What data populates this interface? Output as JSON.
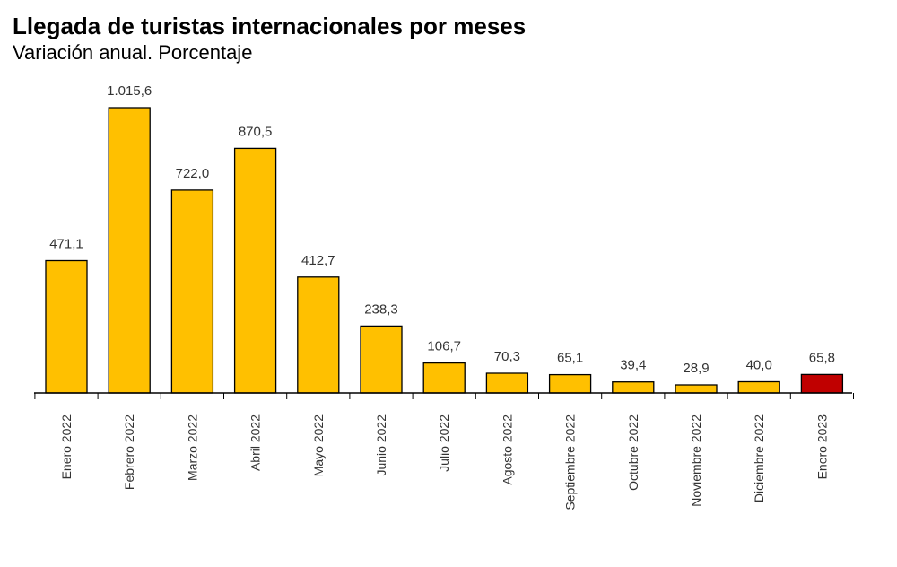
{
  "title": "Llegada de turistas internacionales por meses",
  "subtitle": "Variación anual. Porcentaje",
  "chart_data": {
    "type": "bar",
    "categories": [
      "Enero 2022",
      "Febrero 2022",
      "Marzo 2022",
      "Abril 2022",
      "Mayo 2022",
      "Junio 2022",
      "Julio 2022",
      "Agosto 2022",
      "Septiembre 2022",
      "Octubre 2022",
      "Noviembre 2022",
      "Diciembre 2022",
      "Enero 2023"
    ],
    "values": [
      471.1,
      1015.6,
      722.0,
      870.5,
      412.7,
      238.3,
      106.7,
      70.3,
      65.1,
      39.4,
      28.9,
      40.0,
      65.8
    ],
    "labels": [
      "471,1",
      "1.015,6",
      "722,0",
      "870,5",
      "412,7",
      "238,3",
      "106,7",
      "70,3",
      "65,1",
      "39,4",
      "28,9",
      "40,0",
      "65,8"
    ],
    "title": "Llegada de turistas internacionales por meses",
    "subtitle": "Variación anual. Porcentaje",
    "ylim": [
      0,
      1015.6
    ],
    "grid": false,
    "legend": "none",
    "colors": {
      "bar": "#FFC000",
      "highlight": "#C00000",
      "outline": "#000000"
    },
    "highlight_index": 12
  }
}
